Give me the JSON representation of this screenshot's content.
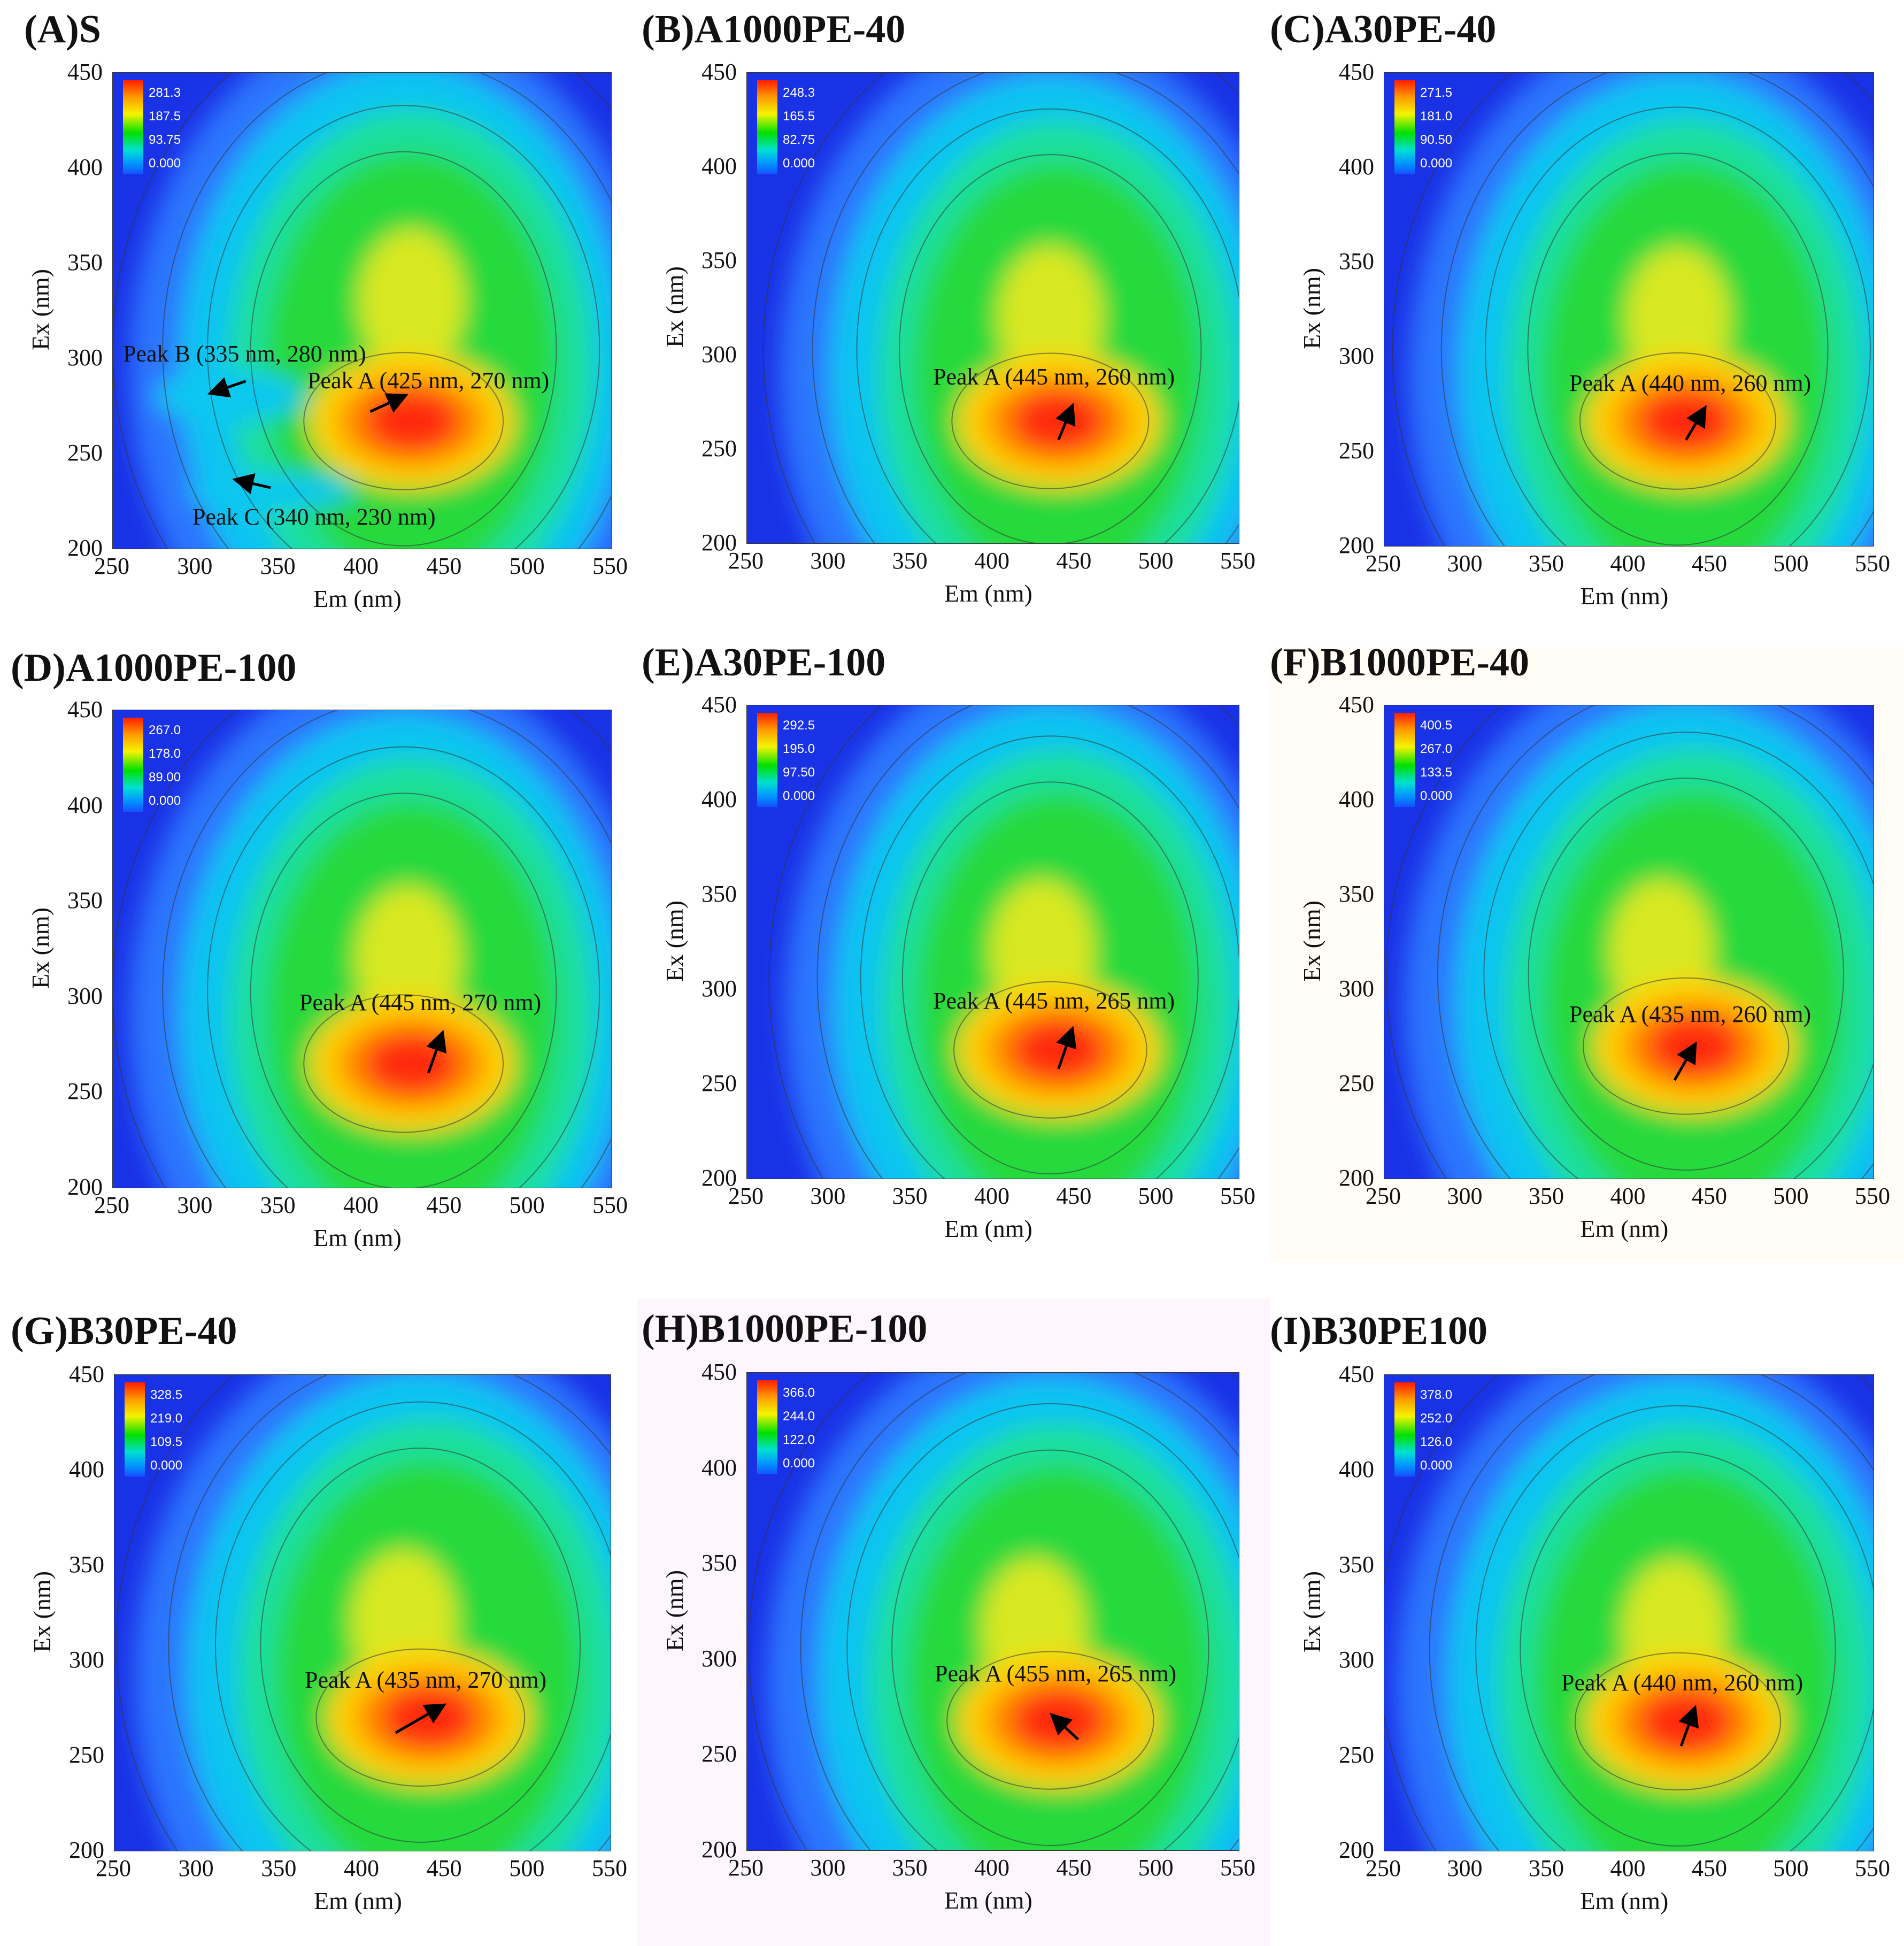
{
  "figure": {
    "panels": [
      {
        "id": "A",
        "title": "(A)S",
        "legend": [
          "281.3",
          "187.5",
          "93.75",
          "0.000"
        ],
        "annotations": [
          {
            "text": "Peak A (425 nm, 270 nm)"
          },
          {
            "text": "Peak B (335 nm, 280 nm)"
          },
          {
            "text": "Peak C (340 nm, 230 nm)"
          }
        ]
      },
      {
        "id": "B",
        "title": "(B)A1000PE-40",
        "legend": [
          "248.3",
          "165.5",
          "82.75",
          "0.000"
        ],
        "annotations": [
          {
            "text": "Peak A (445 nm, 260 nm)"
          }
        ]
      },
      {
        "id": "C",
        "title": "(C)A30PE-40",
        "legend": [
          "271.5",
          "181.0",
          "90.50",
          "0.000"
        ],
        "annotations": [
          {
            "text": "Peak A (440 nm, 260 nm)"
          }
        ]
      },
      {
        "id": "D",
        "title": "(D)A1000PE-100",
        "legend": [
          "267.0",
          "178.0",
          "89.00",
          "0.000"
        ],
        "annotations": [
          {
            "text": "Peak A (445 nm, 270 nm)"
          }
        ]
      },
      {
        "id": "E",
        "title": "(E)A30PE-100",
        "legend": [
          "292.5",
          "195.0",
          "97.50",
          "0.000"
        ],
        "annotations": [
          {
            "text": "Peak A (445 nm, 265 nm)"
          }
        ]
      },
      {
        "id": "F",
        "title": "(F)B1000PE-40",
        "legend": [
          "400.5",
          "267.0",
          "133.5",
          "0.000"
        ],
        "annotations": [
          {
            "text": "Peak A (435 nm, 260 nm)"
          }
        ]
      },
      {
        "id": "G",
        "title": "(G)B30PE-40",
        "legend": [
          "328.5",
          "219.0",
          "109.5",
          "0.000"
        ],
        "annotations": [
          {
            "text": "Peak A (435 nm, 270 nm)"
          }
        ]
      },
      {
        "id": "H",
        "title": "(H)B1000PE-100",
        "legend": [
          "366.0",
          "244.0",
          "122.0",
          "0.000"
        ],
        "annotations": [
          {
            "text": "Peak A (455 nm, 265 nm)"
          }
        ]
      },
      {
        "id": "I",
        "title": "(I)B30PE100",
        "legend": [
          "378.0",
          "252.0",
          "126.0",
          "0.000"
        ],
        "annotations": [
          {
            "text": "Peak A (440 nm, 260 nm)"
          }
        ]
      }
    ],
    "xticks": [
      "250",
      "300",
      "350",
      "400",
      "450",
      "500",
      "550"
    ],
    "yticks": [
      "450",
      "400",
      "350",
      "300",
      "250",
      "200"
    ],
    "xlabel": "Em (nm)",
    "ylabel": "Ex (nm)"
  },
  "chart_data": {
    "type": "heatmap",
    "description_type": "excitation-emission matrix contour",
    "x_axis": {
      "label": "Em (nm)",
      "range": [
        250,
        550
      ]
    },
    "y_axis": {
      "label": "Ex (nm)",
      "range": [
        200,
        450
      ]
    },
    "series": [
      {
        "name": "(A)S",
        "max": 281.3,
        "peaks": [
          {
            "label": "Peak A",
            "em": 425,
            "ex": 270
          },
          {
            "label": "Peak B",
            "em": 335,
            "ex": 280
          },
          {
            "label": "Peak C",
            "em": 340,
            "ex": 230
          }
        ]
      },
      {
        "name": "(B)A1000PE-40",
        "max": 248.3,
        "peaks": [
          {
            "label": "Peak A",
            "em": 445,
            "ex": 260
          }
        ]
      },
      {
        "name": "(C)A30PE-40",
        "max": 271.5,
        "peaks": [
          {
            "label": "Peak A",
            "em": 440,
            "ex": 260
          }
        ]
      },
      {
        "name": "(D)A1000PE-100",
        "max": 267.0,
        "peaks": [
          {
            "label": "Peak A",
            "em": 445,
            "ex": 270
          }
        ]
      },
      {
        "name": "(E)A30PE-100",
        "max": 292.5,
        "peaks": [
          {
            "label": "Peak A",
            "em": 445,
            "ex": 265
          }
        ]
      },
      {
        "name": "(F)B1000PE-40",
        "max": 400.5,
        "peaks": [
          {
            "label": "Peak A",
            "em": 435,
            "ex": 260
          }
        ]
      },
      {
        "name": "(G)B30PE-40",
        "max": 328.5,
        "peaks": [
          {
            "label": "Peak A",
            "em": 435,
            "ex": 270
          }
        ]
      },
      {
        "name": "(H)B1000PE-100",
        "max": 366.0,
        "peaks": [
          {
            "label": "Peak A",
            "em": 455,
            "ex": 265
          }
        ]
      },
      {
        "name": "(I)B30PE100",
        "max": 378.0,
        "peaks": [
          {
            "label": "Peak A",
            "em": 440,
            "ex": 260
          }
        ]
      }
    ],
    "colorbar": [
      "red",
      "orange",
      "yellow",
      "green",
      "cyan",
      "blue"
    ]
  }
}
